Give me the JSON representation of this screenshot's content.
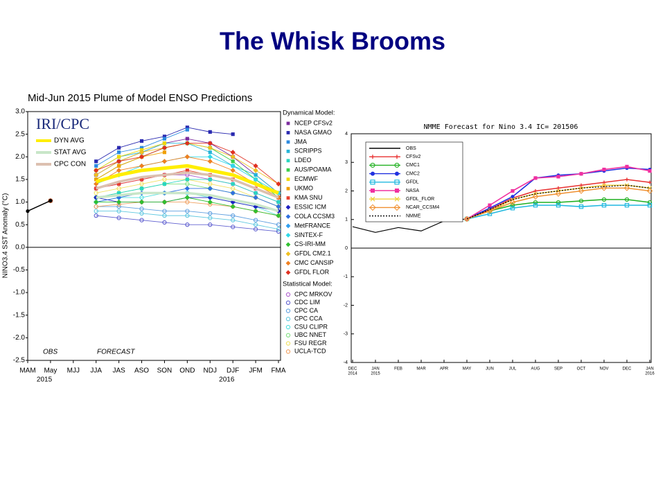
{
  "title": "The Whisk Brooms",
  "chart_data": [
    {
      "type": "line",
      "title": "Mid-Jun 2015 Plume of Model ENSO Predictions",
      "logo": "IRI/CPC",
      "y_label": "NINO3.4 SST Anomaly (°C)",
      "categories": [
        "MAM",
        "May",
        "MJJ",
        "JJA",
        "JAS",
        "ASO",
        "SON",
        "OND",
        "NDJ",
        "DJF",
        "JFM",
        "FMA"
      ],
      "year_labels": [
        null,
        "2015",
        null,
        null,
        null,
        null,
        null,
        null,
        null,
        "2016",
        null,
        null
      ],
      "annotations": [
        "OBS",
        "FORECAST"
      ],
      "ylim": [
        -2.5,
        3.0
      ],
      "yticks": [
        {
          "value": -2.5,
          "label": "-2.5"
        },
        {
          "value": -2.0,
          "label": "-2.0"
        },
        {
          "value": -1.5,
          "label": "-1.5"
        },
        {
          "value": -1.0,
          "label": "-1.0"
        },
        {
          "value": -0.5,
          "label": "-0.5"
        },
        {
          "value": 0.0,
          "label": "0.0"
        },
        {
          "value": 0.5,
          "label": "0.5"
        },
        {
          "value": 1.0,
          "label": "1.0"
        },
        {
          "value": 1.5,
          "label": "1.5"
        },
        {
          "value": 2.0,
          "label": "2.0"
        },
        {
          "value": 2.5,
          "label": "2.5"
        },
        {
          "value": 3.0,
          "label": "3.0"
        }
      ],
      "zero_line": true,
      "obs": {
        "color": "#000000",
        "values": [
          0.8,
          1.03,
          null,
          null,
          null,
          null,
          null,
          null,
          null,
          null,
          null,
          null
        ]
      },
      "averages": [
        {
          "name": "DYN AVG",
          "color": "#ffee00",
          "values": [
            null,
            1.03,
            null,
            1.45,
            1.6,
            1.7,
            1.75,
            1.8,
            1.7,
            1.6,
            1.4,
            1.2
          ]
        },
        {
          "name": "STAT AVG",
          "color": "#c8e6c8",
          "values": [
            null,
            1.03,
            null,
            1.1,
            1.15,
            1.2,
            1.2,
            1.2,
            1.15,
            1.05,
            0.95,
            0.8
          ]
        },
        {
          "name": "CPC CON",
          "color": "#dcc0b0",
          "values": [
            null,
            1.03,
            null,
            1.3,
            1.45,
            1.55,
            1.6,
            1.65,
            1.6,
            1.5,
            1.3,
            1.1
          ]
        }
      ],
      "dynamical": {
        "title": "Dynamical Model:",
        "series": [
          {
            "name": "NCEP CFSv2",
            "color": "#7b2c9e",
            "marker": "square",
            "values": [
              null,
              1.03,
              null,
              1.6,
              1.9,
              2.1,
              2.3,
              2.4,
              2.3,
              2.0,
              1.6,
              1.2
            ]
          },
          {
            "name": "NASA GMAO",
            "color": "#2a2ab0",
            "marker": "square",
            "values": [
              null,
              1.03,
              null,
              1.9,
              2.2,
              2.35,
              2.45,
              2.65,
              2.55,
              2.5,
              null,
              null
            ]
          },
          {
            "name": "JMA",
            "color": "#2d8be0",
            "marker": "square",
            "values": [
              null,
              1.03,
              null,
              1.8,
              2.1,
              2.2,
              2.4,
              2.6,
              null,
              null,
              null,
              null
            ]
          },
          {
            "name": "SCRIPPS",
            "color": "#27b5d8",
            "marker": "square",
            "values": [
              null,
              1.03,
              null,
              1.7,
              2.0,
              2.1,
              2.3,
              2.3,
              2.1,
              1.8,
              1.6,
              1.2
            ]
          },
          {
            "name": "LDEO",
            "color": "#2ad6c0",
            "marker": "square",
            "values": [
              null,
              1.03,
              null,
              1.1,
              1.2,
              1.3,
              1.4,
              1.5,
              1.5,
              1.4,
              1.2,
              1.0
            ]
          },
          {
            "name": "AUS/POAMA",
            "color": "#3acf4a",
            "marker": "square",
            "values": [
              null,
              1.03,
              null,
              1.5,
              1.8,
              2.0,
              2.2,
              2.3,
              2.2,
              1.9,
              1.5,
              1.1
            ]
          },
          {
            "name": "ECMWF",
            "color": "#f0d800",
            "marker": "square",
            "values": [
              null,
              1.03,
              null,
              1.7,
              2.0,
              2.15,
              2.3,
              null,
              null,
              null,
              null,
              null
            ]
          },
          {
            "name": "UKMO",
            "color": "#f0a000",
            "marker": "square",
            "values": [
              null,
              1.03,
              null,
              1.5,
              1.8,
              2.0,
              2.1,
              null,
              null,
              null,
              null,
              null
            ]
          },
          {
            "name": "KMA SNU",
            "color": "#e84030",
            "marker": "square",
            "values": [
              null,
              1.03,
              null,
              1.3,
              1.4,
              1.5,
              1.6,
              1.7,
              1.6,
              1.5,
              1.3,
              1.1
            ]
          },
          {
            "name": "ESSIC ICM",
            "color": "#2020c0",
            "marker": "diamond",
            "values": [
              null,
              1.03,
              null,
              1.1,
              1.0,
              1.0,
              1.0,
              1.1,
              1.1,
              1.0,
              0.9,
              0.8
            ]
          },
          {
            "name": "COLA CCSM3",
            "color": "#3070e0",
            "marker": "diamond",
            "values": [
              null,
              1.03,
              null,
              1.0,
              1.1,
              1.2,
              1.2,
              1.3,
              1.3,
              1.2,
              1.1,
              0.9
            ]
          },
          {
            "name": "MetFRANCE",
            "color": "#30a0f0",
            "marker": "diamond",
            "values": [
              null,
              1.03,
              null,
              1.6,
              1.9,
              2.1,
              null,
              null,
              null,
              null,
              null,
              null
            ]
          },
          {
            "name": "SINTEX-F",
            "color": "#30d8e8",
            "marker": "diamond",
            "values": [
              null,
              1.03,
              null,
              1.4,
              1.6,
              1.8,
              1.9,
              2.0,
              2.0,
              1.8,
              1.5,
              1.2
            ]
          },
          {
            "name": "CS-IRI-MM",
            "color": "#30c030",
            "marker": "diamond",
            "values": [
              null,
              1.03,
              null,
              1.0,
              1.0,
              1.0,
              1.0,
              1.1,
              1.0,
              0.9,
              0.8,
              0.7
            ]
          },
          {
            "name": "GFDL CM2.1",
            "color": "#f0c020",
            "marker": "diamond",
            "values": [
              null,
              1.03,
              null,
              1.6,
              1.9,
              2.1,
              2.2,
              2.3,
              2.2,
              2.0,
              1.7,
              1.4
            ]
          },
          {
            "name": "CMC CANSIP",
            "color": "#f08020",
            "marker": "diamond",
            "values": [
              null,
              1.03,
              null,
              1.4,
              1.7,
              1.8,
              1.9,
              2.0,
              1.9,
              1.7,
              1.4,
              1.1
            ]
          },
          {
            "name": "GFDL FLOR",
            "color": "#e03020",
            "marker": "diamond",
            "values": [
              null,
              1.03,
              null,
              1.7,
              1.9,
              2.0,
              2.2,
              2.3,
              2.3,
              2.1,
              1.8,
              1.4
            ]
          }
        ]
      },
      "statistical": {
        "title": "Statistical Model:",
        "series": [
          {
            "name": "CPC MRKOV",
            "color": "#b060d0",
            "marker": "circle-open",
            "values": [
              null,
              1.03,
              null,
              1.3,
              1.4,
              1.5,
              1.6,
              1.6,
              1.5,
              1.4,
              1.2,
              1.0
            ]
          },
          {
            "name": "CDC LIM",
            "color": "#6060d0",
            "marker": "circle-open",
            "values": [
              null,
              1.03,
              null,
              0.7,
              0.65,
              0.6,
              0.55,
              0.5,
              0.5,
              0.45,
              0.4,
              0.35
            ]
          },
          {
            "name": "CPC CA",
            "color": "#60a0e0",
            "marker": "circle-open",
            "values": [
              null,
              1.03,
              null,
              0.9,
              0.9,
              0.85,
              0.8,
              0.8,
              0.75,
              0.7,
              0.6,
              0.5
            ]
          },
          {
            "name": "CPC CCA",
            "color": "#60c8e0",
            "marker": "circle-open",
            "values": [
              null,
              1.03,
              null,
              0.8,
              0.8,
              0.75,
              0.7,
              0.7,
              0.65,
              0.6,
              0.5,
              0.4
            ]
          },
          {
            "name": "CSU CLIPR",
            "color": "#50e0e0",
            "marker": "circle-open",
            "values": [
              null,
              1.03,
              null,
              1.0,
              1.1,
              1.1,
              1.2,
              1.2,
              1.1,
              1.0,
              0.9,
              0.7
            ]
          },
          {
            "name": "UBC NNET",
            "color": "#80e080",
            "marker": "circle-open",
            "values": [
              null,
              1.03,
              null,
              1.1,
              1.2,
              1.3,
              1.4,
              1.4,
              1.3,
              1.2,
              1.1,
              0.9
            ]
          },
          {
            "name": "FSU REGR",
            "color": "#f0e060",
            "marker": "circle-open",
            "values": [
              null,
              1.03,
              null,
              1.2,
              1.3,
              1.4,
              1.5,
              1.5,
              1.4,
              1.3,
              1.1,
              0.9
            ]
          },
          {
            "name": "UCLA-TCD",
            "color": "#f0a060",
            "marker": "circle-open",
            "values": [
              null,
              1.03,
              null,
              0.9,
              0.95,
              1.0,
              1.0,
              1.0,
              0.95,
              0.9,
              0.8,
              0.7
            ]
          }
        ]
      }
    },
    {
      "type": "line",
      "title": "NMME Forecast for Nino 3.4   IC= 201506",
      "categories": [
        "DEC",
        "JAN",
        "FEB",
        "MAR",
        "APR",
        "MAY",
        "JUN",
        "JUL",
        "AUG",
        "SEP",
        "OCT",
        "NOV",
        "DEC",
        "JAN"
      ],
      "year_labels": [
        "2014",
        "2015",
        null,
        null,
        null,
        null,
        null,
        null,
        null,
        null,
        null,
        null,
        null,
        "2016"
      ],
      "ylim": [
        -4,
        4
      ],
      "yticks": [
        -4,
        -3,
        -2,
        -1,
        0,
        1,
        2,
        3,
        4
      ],
      "zero_line": true,
      "series": [
        {
          "name": "OBS",
          "color": "#000000",
          "marker": "none",
          "values": [
            0.75,
            0.55,
            0.72,
            0.6,
            0.95,
            1.02,
            null,
            null,
            null,
            null,
            null,
            null,
            null,
            null
          ]
        },
        {
          "name": "CFSv2",
          "color": "#e83030",
          "marker": "plus",
          "values": [
            null,
            null,
            null,
            null,
            null,
            1.02,
            1.35,
            1.75,
            2.0,
            2.1,
            2.2,
            2.3,
            2.4,
            2.3
          ]
        },
        {
          "name": "CMC1",
          "color": "#20b020",
          "marker": "circle-open",
          "values": [
            null,
            null,
            null,
            null,
            null,
            1.02,
            1.3,
            1.5,
            1.6,
            1.6,
            1.65,
            1.7,
            1.7,
            1.6
          ]
        },
        {
          "name": "CMC2",
          "color": "#2030e0",
          "marker": "circle",
          "values": [
            null,
            null,
            null,
            null,
            null,
            1.02,
            1.4,
            1.8,
            2.45,
            2.55,
            2.6,
            2.7,
            2.8,
            2.75
          ]
        },
        {
          "name": "GFDL",
          "color": "#20b8e0",
          "marker": "square-open",
          "values": [
            null,
            null,
            null,
            null,
            null,
            1.02,
            1.2,
            1.4,
            1.5,
            1.5,
            1.45,
            1.5,
            1.5,
            1.5
          ]
        },
        {
          "name": "NASA",
          "color": "#f030a0",
          "marker": "square",
          "values": [
            null,
            null,
            null,
            null,
            null,
            1.02,
            1.5,
            2.0,
            2.45,
            2.5,
            2.6,
            2.75,
            2.85,
            2.7
          ]
        },
        {
          "name": "GFDL_FLOR",
          "color": "#f0d040",
          "marker": "x",
          "values": [
            null,
            null,
            null,
            null,
            null,
            1.02,
            1.3,
            1.7,
            1.9,
            2.0,
            2.1,
            2.2,
            2.2,
            2.1
          ]
        },
        {
          "name": "NCAR_CCSM4",
          "color": "#f09030",
          "marker": "diamond-open",
          "values": [
            null,
            null,
            null,
            null,
            null,
            1.02,
            1.3,
            1.6,
            1.8,
            1.9,
            2.0,
            2.1,
            2.1,
            2.0
          ]
        },
        {
          "name": "NMME",
          "color": "#000000",
          "marker": "none",
          "dash": true,
          "values": [
            null,
            null,
            null,
            null,
            null,
            1.02,
            1.35,
            1.7,
            1.9,
            2.0,
            2.1,
            2.15,
            2.2,
            2.1
          ]
        }
      ]
    }
  ]
}
